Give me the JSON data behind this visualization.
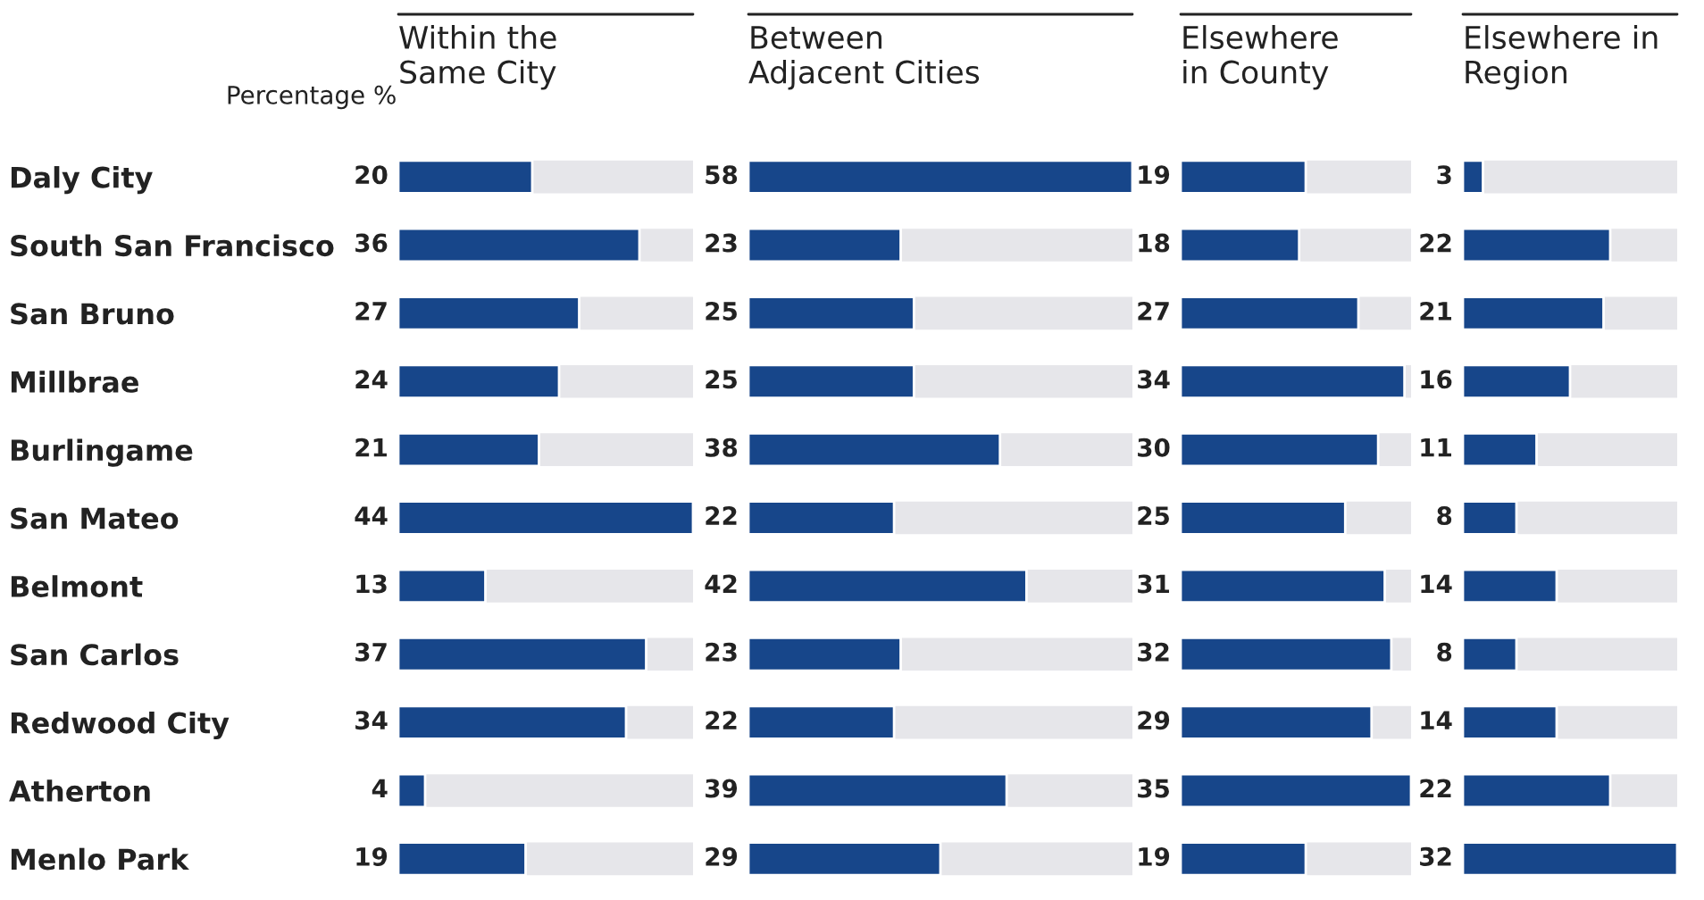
{
  "chart_data": [
    {
      "type": "bar",
      "orientation": "horizontal",
      "title": "Within the\nSame City",
      "annotations": [
        "Percentage %"
      ],
      "tick_labels": "y",
      "data_labels": true,
      "categories": [
        "Daly City",
        "South San Francisco",
        "San Bruno",
        "Millbrae",
        "Burlingame",
        "San Mateo",
        "Belmont",
        "San Carlos",
        "Redwood City",
        "Atherton",
        "Menlo Park"
      ],
      "series": [
        {
          "color": "#17468a",
          "values": [
            20,
            36,
            27,
            24,
            21,
            44,
            13,
            37,
            34,
            4,
            19
          ]
        }
      ]
    },
    {
      "type": "bar",
      "orientation": "horizontal",
      "title": "Between\nAdjacent Cities",
      "tick_labels": false,
      "data_labels": true,
      "categories": [
        null,
        null,
        null,
        null,
        null,
        null,
        null,
        null,
        null,
        null,
        null
      ],
      "series": [
        {
          "color": "#17468a",
          "values": [
            58,
            23,
            25,
            25,
            38,
            22,
            42,
            23,
            22,
            39,
            29
          ]
        }
      ]
    },
    {
      "type": "bar",
      "orientation": "horizontal",
      "title": "Elsewhere\nin County",
      "tick_labels": false,
      "data_labels": true,
      "categories": [
        null,
        null,
        null,
        null,
        null,
        null,
        null,
        null,
        null,
        null,
        null
      ],
      "series": [
        {
          "color": "#17468a",
          "values": [
            19,
            18,
            27,
            34,
            30,
            25,
            31,
            32,
            29,
            35,
            19
          ]
        }
      ]
    },
    {
      "type": "bar",
      "orientation": "horizontal",
      "title": "Elsewhere in\nRegion",
      "tick_labels": false,
      "data_labels": true,
      "categories": [
        null,
        null,
        null,
        null,
        null,
        null,
        null,
        null,
        null,
        null,
        null
      ],
      "series": [
        {
          "color": "#17468a",
          "values": [
            3,
            22,
            21,
            16,
            11,
            8,
            14,
            8,
            14,
            22,
            32
          ]
        }
      ]
    }
  ]
}
